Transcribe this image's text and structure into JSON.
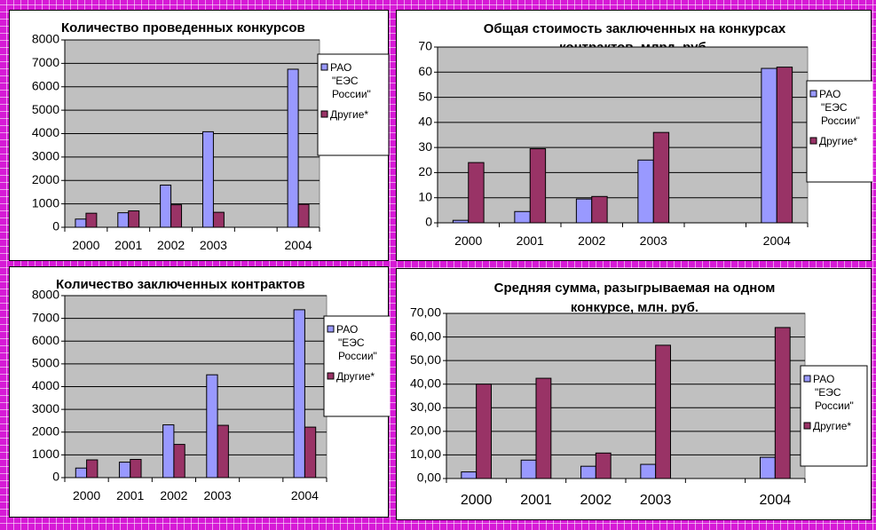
{
  "chart_data": [
    {
      "type": "bar",
      "title": [
        "Количество проведенных конкурсов"
      ],
      "categories": [
        "2000",
        "2001",
        "2002",
        "2003",
        "",
        "2004"
      ],
      "ylim": [
        0,
        8000
      ],
      "yticks": [
        "0",
        "1000",
        "2000",
        "3000",
        "4000",
        "5000",
        "6000",
        "7000",
        "8000"
      ],
      "grid": true,
      "legend_position": "right",
      "series": [
        {
          "name": "РАО \"ЕЭС России\"",
          "values": [
            350,
            620,
            1800,
            4080,
            null,
            6750
          ]
        },
        {
          "name": "Другие*",
          "values": [
            600,
            700,
            960,
            640,
            null,
            980
          ]
        }
      ]
    },
    {
      "type": "bar",
      "title": [
        "Общая стоимость заключенных на конкурсах",
        "контрактов, млрд. руб."
      ],
      "categories": [
        "2000",
        "2001",
        "2002",
        "2003",
        "",
        "2004"
      ],
      "ylim": [
        0,
        70
      ],
      "yticks": [
        "0",
        "10",
        "20",
        "30",
        "40",
        "50",
        "60",
        "70"
      ],
      "grid": true,
      "legend_position": "right",
      "series": [
        {
          "name": "РАО \"ЕЭС России\"",
          "values": [
            1,
            4.5,
            9.5,
            25,
            null,
            61.5
          ]
        },
        {
          "name": "Другие*",
          "values": [
            24,
            29.5,
            10.5,
            36,
            null,
            62
          ]
        }
      ]
    },
    {
      "type": "bar",
      "title": [
        "Количество заключенных контрактов"
      ],
      "categories": [
        "2000",
        "2001",
        "2002",
        "2003",
        "",
        "2004"
      ],
      "ylim": [
        0,
        8000
      ],
      "yticks": [
        "0",
        "1000",
        "2000",
        "3000",
        "4000",
        "5000",
        "6000",
        "7000",
        "8000"
      ],
      "grid": true,
      "legend_position": "right",
      "series": [
        {
          "name": "РАО \"ЕЭС России\"",
          "values": [
            420,
            680,
            2320,
            4520,
            null,
            7380
          ]
        },
        {
          "name": "Другие*",
          "values": [
            780,
            800,
            1460,
            2300,
            null,
            2220
          ]
        }
      ]
    },
    {
      "type": "bar",
      "title": [
        "Средняя сумма, разыгрываемая на одном",
        "конкурсе, млн. руб."
      ],
      "categories": [
        "2000",
        "2001",
        "2002",
        "2003",
        "",
        "2004"
      ],
      "ylim": [
        0,
        70
      ],
      "yticks": [
        "0,00",
        "10,00",
        "20,00",
        "30,00",
        "40,00",
        "50,00",
        "60,00",
        "70,00"
      ],
      "grid": true,
      "legend_position": "right",
      "series": [
        {
          "name": "РАО \"ЕЭС России\"",
          "values": [
            2.8,
            7.8,
            5.2,
            6,
            null,
            9
          ]
        },
        {
          "name": "Другие*",
          "values": [
            40,
            42.5,
            10.8,
            56.5,
            null,
            64
          ]
        }
      ]
    }
  ],
  "legend_lines": [
    "РАО",
    "\"ЕЭС",
    "России\"",
    "Другие*"
  ],
  "colors": {
    "series_1": "#9999ff",
    "series_2": "#993366",
    "plot_background": "#c0c0c0",
    "background": "#d61ad6"
  }
}
